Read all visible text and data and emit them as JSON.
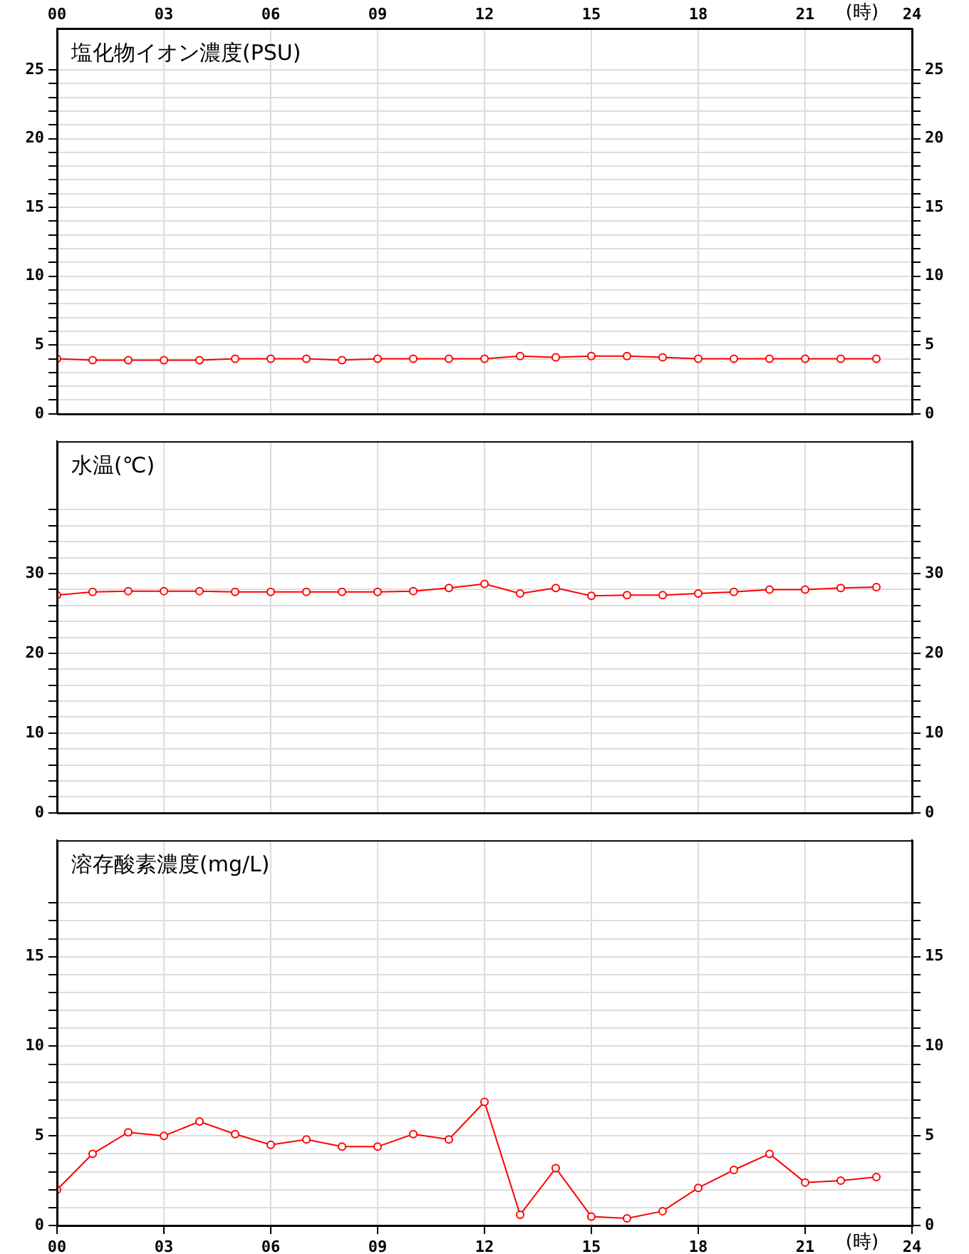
{
  "chart_data": [
    {
      "type": "line",
      "title": "塩化物イオン濃度(PSU)",
      "x2label": "(時)",
      "xlim": [
        0,
        24
      ],
      "x2lim": [
        0,
        24
      ],
      "x2ticks": [
        {
          "value": 0,
          "label": "00"
        },
        {
          "value": 3,
          "label": "03"
        },
        {
          "value": 6,
          "label": "06"
        },
        {
          "value": 9,
          "label": "09"
        },
        {
          "value": 12,
          "label": "12"
        },
        {
          "value": 15,
          "label": "15"
        },
        {
          "value": 18,
          "label": "18"
        },
        {
          "value": 21,
          "label": "21"
        },
        {
          "value": 24,
          "label": "24"
        }
      ],
      "xticks": [
        0,
        3,
        6,
        9,
        12,
        15,
        18,
        21,
        24
      ],
      "tick_labels": "y",
      "ylim": [
        0,
        28
      ],
      "y2lim": [
        0,
        28
      ],
      "yticks": [
        0,
        {
          "value": 1,
          "label": null
        },
        {
          "value": 2,
          "label": null
        },
        {
          "value": 3,
          "label": null
        },
        {
          "value": 4,
          "label": null
        },
        5,
        {
          "value": 6,
          "label": null
        },
        {
          "value": 7,
          "label": null
        },
        {
          "value": 8,
          "label": null
        },
        {
          "value": 9,
          "label": null
        },
        10,
        {
          "value": 11,
          "label": null
        },
        {
          "value": 12,
          "label": null
        },
        {
          "value": 13,
          "label": null
        },
        {
          "value": 14,
          "label": null
        },
        15,
        {
          "value": 16,
          "label": null
        },
        {
          "value": 17,
          "label": null
        },
        {
          "value": 18,
          "label": null
        },
        {
          "value": 19,
          "label": null
        },
        20,
        {
          "value": 21,
          "label": null
        },
        {
          "value": 22,
          "label": null
        },
        {
          "value": 23,
          "label": null
        },
        {
          "value": 24,
          "label": null
        },
        25
      ],
      "y2ticks": [
        0,
        {
          "value": 1,
          "label": null
        },
        {
          "value": 2,
          "label": null
        },
        {
          "value": 3,
          "label": null
        },
        {
          "value": 4,
          "label": null
        },
        5,
        {
          "value": 6,
          "label": null
        },
        {
          "value": 7,
          "label": null
        },
        {
          "value": 8,
          "label": null
        },
        {
          "value": 9,
          "label": null
        },
        10,
        {
          "value": 11,
          "label": null
        },
        {
          "value": 12,
          "label": null
        },
        {
          "value": 13,
          "label": null
        },
        {
          "value": 14,
          "label": null
        },
        15,
        {
          "value": 16,
          "label": null
        },
        {
          "value": 17,
          "label": null
        },
        {
          "value": 18,
          "label": null
        },
        {
          "value": 19,
          "label": null
        },
        20,
        {
          "value": 21,
          "label": null
        },
        {
          "value": 22,
          "label": null
        },
        {
          "value": 23,
          "label": null
        },
        {
          "value": 24,
          "label": null
        },
        25
      ],
      "grid": true,
      "marker": "circle",
      "x": [
        0,
        1,
        2,
        3,
        4,
        5,
        6,
        7,
        8,
        9,
        10,
        11,
        12,
        13,
        14,
        15,
        16,
        17,
        18,
        19,
        20,
        21,
        22,
        23
      ],
      "series": [
        {
          "color": "#ff0000",
          "values": [
            4.0,
            3.9,
            3.9,
            3.9,
            3.9,
            4.0,
            4.0,
            4.0,
            3.9,
            4.0,
            4.0,
            4.0,
            4.0,
            4.2,
            4.1,
            4.2,
            4.2,
            4.1,
            4.0,
            4.0,
            4.0,
            4.0,
            4.0,
            4.0
          ]
        }
      ]
    },
    {
      "type": "line",
      "title": "水温(℃)",
      "xlim": [
        0,
        24
      ],
      "xticks": [
        0,
        3,
        6,
        9,
        12,
        15,
        18,
        21,
        24
      ],
      "tick_labels": "y",
      "ylim": [
        0,
        46.6
      ],
      "y2lim": [
        0,
        46.6
      ],
      "yticks": [
        0,
        {
          "value": 2,
          "label": null
        },
        {
          "value": 4,
          "label": null
        },
        {
          "value": 6,
          "label": null
        },
        {
          "value": 8,
          "label": null
        },
        10,
        {
          "value": 12,
          "label": null
        },
        {
          "value": 14,
          "label": null
        },
        {
          "value": 16,
          "label": null
        },
        {
          "value": 18,
          "label": null
        },
        20,
        {
          "value": 22,
          "label": null
        },
        {
          "value": 24,
          "label": null
        },
        {
          "value": 26,
          "label": null
        },
        {
          "value": 28,
          "label": null
        },
        30,
        {
          "value": 32,
          "label": null
        },
        {
          "value": 34,
          "label": null
        },
        {
          "value": 36,
          "label": null
        },
        {
          "value": 38,
          "label": null
        }
      ],
      "y2ticks": [
        0,
        {
          "value": 2,
          "label": null
        },
        {
          "value": 4,
          "label": null
        },
        {
          "value": 6,
          "label": null
        },
        {
          "value": 8,
          "label": null
        },
        10,
        {
          "value": 12,
          "label": null
        },
        {
          "value": 14,
          "label": null
        },
        {
          "value": 16,
          "label": null
        },
        {
          "value": 18,
          "label": null
        },
        20,
        {
          "value": 22,
          "label": null
        },
        {
          "value": 24,
          "label": null
        },
        {
          "value": 26,
          "label": null
        },
        {
          "value": 28,
          "label": null
        },
        30,
        {
          "value": 32,
          "label": null
        },
        {
          "value": 34,
          "label": null
        },
        {
          "value": 36,
          "label": null
        },
        {
          "value": 38,
          "label": null
        }
      ],
      "grid": true,
      "marker": "circle",
      "x": [
        0,
        1,
        2,
        3,
        4,
        5,
        6,
        7,
        8,
        9,
        10,
        11,
        12,
        13,
        14,
        15,
        16,
        17,
        18,
        19,
        20,
        21,
        22,
        23
      ],
      "series": [
        {
          "color": "#ff0000",
          "values": [
            27.3,
            27.7,
            27.8,
            27.8,
            27.8,
            27.7,
            27.7,
            27.7,
            27.7,
            27.7,
            27.8,
            28.2,
            28.7,
            27.5,
            28.2,
            27.2,
            27.3,
            27.3,
            27.5,
            27.7,
            28.0,
            28.0,
            28.2,
            28.3
          ]
        }
      ]
    },
    {
      "type": "line",
      "title": "溶存酸素濃度(mg/L)",
      "xlabel": "(時)",
      "xlim": [
        0,
        24
      ],
      "xticks": [
        {
          "value": 0,
          "label": "00"
        },
        {
          "value": 3,
          "label": "03"
        },
        {
          "value": 6,
          "label": "06"
        },
        {
          "value": 9,
          "label": "09"
        },
        {
          "value": 12,
          "label": "12"
        },
        {
          "value": 15,
          "label": "15"
        },
        {
          "value": 18,
          "label": "18"
        },
        {
          "value": 21,
          "label": "21"
        },
        {
          "value": 24,
          "label": "24"
        }
      ],
      "ylim": [
        0,
        21.5
      ],
      "y2lim": [
        0,
        21.5
      ],
      "yticks": [
        0,
        {
          "value": 1,
          "label": null
        },
        {
          "value": 2,
          "label": null
        },
        {
          "value": 3,
          "label": null
        },
        {
          "value": 4,
          "label": null
        },
        5,
        {
          "value": 6,
          "label": null
        },
        {
          "value": 7,
          "label": null
        },
        {
          "value": 8,
          "label": null
        },
        {
          "value": 9,
          "label": null
        },
        10,
        {
          "value": 11,
          "label": null
        },
        {
          "value": 12,
          "label": null
        },
        {
          "value": 13,
          "label": null
        },
        {
          "value": 14,
          "label": null
        },
        15,
        {
          "value": 16,
          "label": null
        },
        {
          "value": 17,
          "label": null
        },
        {
          "value": 18,
          "label": null
        }
      ],
      "y2ticks": [
        0,
        {
          "value": 1,
          "label": null
        },
        {
          "value": 2,
          "label": null
        },
        {
          "value": 3,
          "label": null
        },
        {
          "value": 4,
          "label": null
        },
        5,
        {
          "value": 6,
          "label": null
        },
        {
          "value": 7,
          "label": null
        },
        {
          "value": 8,
          "label": null
        },
        {
          "value": 9,
          "label": null
        },
        10,
        {
          "value": 11,
          "label": null
        },
        {
          "value": 12,
          "label": null
        },
        {
          "value": 13,
          "label": null
        },
        {
          "value": 14,
          "label": null
        },
        15,
        {
          "value": 16,
          "label": null
        },
        {
          "value": 17,
          "label": null
        },
        {
          "value": 18,
          "label": null
        }
      ],
      "grid": true,
      "marker": "circle",
      "x": [
        0,
        1,
        2,
        3,
        4,
        5,
        6,
        7,
        8,
        9,
        10,
        11,
        12,
        13,
        14,
        15,
        16,
        17,
        18,
        19,
        20,
        21,
        22,
        23
      ],
      "series": [
        {
          "color": "#ff0000",
          "values": [
            2.0,
            4.0,
            5.2,
            5.0,
            5.8,
            5.1,
            4.5,
            4.8,
            4.4,
            4.4,
            5.1,
            4.8,
            6.9,
            0.6,
            3.2,
            0.5,
            0.4,
            0.8,
            2.1,
            3.1,
            4.0,
            2.4,
            2.5,
            2.7
          ]
        }
      ]
    }
  ]
}
